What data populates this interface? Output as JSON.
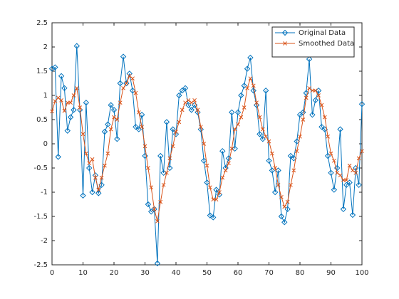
{
  "chart_data": {
    "type": "line",
    "x": [
      0,
      1,
      2,
      3,
      4,
      5,
      6,
      7,
      8,
      9,
      10,
      11,
      12,
      13,
      14,
      15,
      16,
      17,
      18,
      19,
      20,
      21,
      22,
      23,
      24,
      25,
      26,
      27,
      28,
      29,
      30,
      31,
      32,
      33,
      34,
      35,
      36,
      37,
      38,
      39,
      40,
      41,
      42,
      43,
      44,
      45,
      46,
      47,
      48,
      49,
      50,
      51,
      52,
      53,
      54,
      55,
      56,
      57,
      58,
      59,
      60,
      61,
      62,
      63,
      64,
      65,
      66,
      67,
      68,
      69,
      70,
      71,
      72,
      73,
      74,
      75,
      76,
      77,
      78,
      79,
      80,
      81,
      82,
      83,
      84,
      85,
      86,
      87,
      88,
      89,
      90,
      91,
      92,
      93,
      94,
      95,
      96,
      97,
      98,
      99,
      100
    ],
    "series": [
      {
        "name": "Original Data",
        "color": "#0072bd",
        "marker": "diamond",
        "values": [
          1.55,
          1.58,
          -0.27,
          1.4,
          1.15,
          0.27,
          0.55,
          0.7,
          2.02,
          0.7,
          -1.07,
          0.85,
          -0.5,
          -1.0,
          -0.65,
          -1.02,
          -0.85,
          0.25,
          0.4,
          0.8,
          0.7,
          0.1,
          1.25,
          1.8,
          1.25,
          1.45,
          1.1,
          0.35,
          0.3,
          0.6,
          -0.25,
          -1.25,
          -1.4,
          -1.35,
          -2.47,
          -0.25,
          -0.6,
          0.45,
          -0.5,
          0.3,
          0.2,
          1.0,
          1.1,
          1.15,
          0.8,
          0.7,
          0.8,
          0.65,
          0.3,
          -0.35,
          -0.8,
          -1.48,
          -1.52,
          -0.95,
          -1.05,
          -0.15,
          -0.5,
          -0.3,
          0.65,
          -0.1,
          0.65,
          1.0,
          1.2,
          1.55,
          1.78,
          1.1,
          0.8,
          0.2,
          0.1,
          1.1,
          -0.35,
          -0.55,
          -1.0,
          -0.55,
          -1.5,
          -1.62,
          -1.35,
          -0.25,
          -0.3,
          0.05,
          0.6,
          0.65,
          1.05,
          1.75,
          0.6,
          0.9,
          1.1,
          0.35,
          0.3,
          -0.25,
          -0.6,
          -0.95,
          -0.5,
          0.3,
          -1.35,
          -0.85,
          -0.8,
          -1.47,
          -0.5,
          -0.85,
          0.82
        ]
      },
      {
        "name": "Smoothed Data",
        "color": "#d95319",
        "marker": "x",
        "values": [
          0.67,
          0.88,
          0.95,
          0.9,
          0.68,
          0.85,
          0.85,
          1.0,
          1.15,
          0.75,
          0.2,
          -0.2,
          -0.4,
          -0.32,
          -0.7,
          -0.95,
          -0.7,
          -0.45,
          -0.2,
          0.3,
          0.55,
          0.5,
          0.85,
          1.15,
          1.25,
          1.4,
          1.35,
          1.05,
          0.65,
          0.35,
          -0.05,
          -0.5,
          -0.9,
          -1.35,
          -1.6,
          -1.2,
          -0.85,
          -0.6,
          -0.3,
          -0.05,
          0.25,
          0.45,
          0.7,
          0.85,
          0.9,
          0.85,
          0.9,
          0.7,
          0.35,
          0.0,
          -0.45,
          -0.9,
          -1.15,
          -1.15,
          -1.0,
          -0.7,
          -0.55,
          -0.4,
          -0.1,
          0.3,
          0.4,
          0.55,
          0.75,
          1.15,
          1.35,
          1.2,
          0.85,
          0.55,
          0.3,
          0.15,
          0.05,
          -0.2,
          -0.5,
          -0.85,
          -1.1,
          -1.3,
          -1.2,
          -0.85,
          -0.55,
          -0.15,
          0.15,
          0.5,
          0.95,
          1.15,
          1.1,
          1.1,
          1.0,
          0.8,
          0.55,
          0.15,
          -0.2,
          -0.35,
          -0.6,
          -0.65,
          -0.75,
          -0.75,
          -0.45,
          -0.55,
          -0.6,
          -0.3,
          -0.15
        ]
      }
    ],
    "xlim": [
      0,
      100
    ],
    "xticks": [
      0,
      10,
      20,
      30,
      40,
      50,
      60,
      70,
      80,
      90,
      100
    ],
    "ylim": [
      -2.5,
      2.5
    ],
    "yticks": [
      -2.5,
      -2,
      -1.5,
      -1,
      -0.5,
      0,
      0.5,
      1,
      1.5,
      2,
      2.5
    ],
    "grid": false,
    "legend": "northeast"
  }
}
